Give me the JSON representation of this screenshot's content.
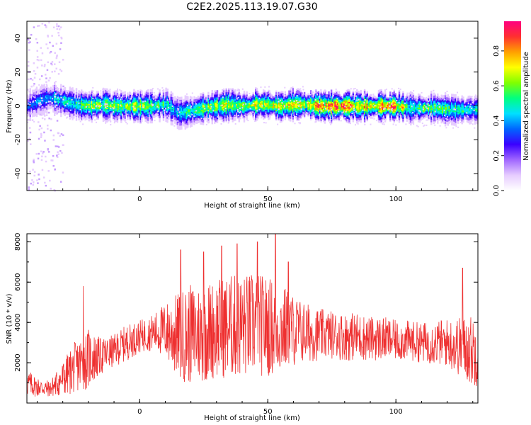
{
  "figure": {
    "title": "C2E2.2025.113.19.07.G30"
  },
  "colors": {
    "snr_line": "#ee3030",
    "spectrogram_background": "#ffffff"
  },
  "colormap": [
    "#ffffff",
    "#e6ccff",
    "#a066ff",
    "#3a00ff",
    "#0066ff",
    "#00e0ff",
    "#00ff80",
    "#80ff00",
    "#ffff00",
    "#ffa000",
    "#ff3030",
    "#ff0080"
  ],
  "chart_data": [
    {
      "type": "heatmap",
      "title": "C2E2.2025.113.19.07.G30",
      "xlabel": "Height of straight line (km)",
      "ylabel": "Frequency (Hz)",
      "xlim": [
        -44,
        132
      ],
      "ylim": [
        -50,
        50
      ],
      "x_ticks": [
        0,
        50,
        100
      ],
      "x_tick_labels": [
        "0",
        "50",
        "100"
      ],
      "y_ticks": [
        -40,
        -20,
        0,
        20,
        40
      ],
      "y_tick_labels": [
        "-40",
        "-20",
        "0",
        "20",
        "40"
      ],
      "colorbar": {
        "label": "Normalized spectral amplitude",
        "range": [
          0,
          0.97
        ],
        "ticks": [
          0,
          0.2,
          0.4,
          0.6,
          0.8
        ],
        "tick_labels": [
          "0.0",
          "0.2",
          "0.4",
          "0.6",
          "0.8"
        ]
      },
      "ridge": {
        "x": [
          -44,
          -40,
          -35,
          -30,
          -25,
          -20,
          -15,
          -10,
          -5,
          0,
          5,
          10,
          15,
          20,
          25,
          30,
          35,
          40,
          45,
          50,
          55,
          60,
          65,
          70,
          75,
          80,
          85,
          90,
          95,
          100,
          105,
          110,
          115,
          120,
          125,
          130
        ],
        "frequency": [
          0,
          3,
          5,
          3,
          1,
          0,
          1,
          0,
          0,
          0,
          0,
          1,
          -4,
          -3,
          -1,
          0,
          1,
          0,
          1,
          1,
          0,
          1,
          1,
          0,
          0,
          0,
          0,
          0,
          0,
          0,
          -1,
          -1,
          -1,
          -2,
          -2,
          -2
        ],
        "amplitude": [
          0.35,
          0.45,
          0.5,
          0.55,
          0.6,
          0.72,
          0.75,
          0.72,
          0.7,
          0.75,
          0.72,
          0.55,
          0.45,
          0.6,
          0.7,
          0.72,
          0.75,
          0.7,
          0.75,
          0.8,
          0.85,
          0.82,
          0.75,
          0.95,
          0.95,
          0.95,
          0.8,
          0.9,
          0.9,
          0.92,
          0.6,
          0.7,
          0.7,
          0.65,
          0.6,
          0.55
        ]
      }
    },
    {
      "type": "line",
      "xlabel": "Height of straight line (km)",
      "ylabel": "SNR (10 * v/v)",
      "xlim": [
        -44,
        132
      ],
      "ylim": [
        0,
        8400
      ],
      "x_ticks": [
        0,
        50,
        100
      ],
      "x_tick_labels": [
        "0",
        "50",
        "100"
      ],
      "y_ticks": [
        2000,
        4000,
        6000,
        8000
      ],
      "y_tick_labels": [
        "2000",
        "4000",
        "6000",
        "8000"
      ],
      "envelope": {
        "x": [
          -44,
          -40,
          -35,
          -30,
          -25,
          -20,
          -15,
          -10,
          -5,
          0,
          5,
          10,
          15,
          20,
          25,
          30,
          35,
          40,
          45,
          50,
          55,
          60,
          65,
          70,
          75,
          80,
          85,
          90,
          95,
          100,
          105,
          110,
          115,
          120,
          125,
          130
        ],
        "mean": [
          1000,
          800,
          700,
          1200,
          1800,
          2200,
          2300,
          2600,
          3000,
          3300,
          3500,
          3600,
          3300,
          3400,
          3500,
          3700,
          3800,
          3800,
          3900,
          3800,
          3700,
          3600,
          3500,
          3400,
          3400,
          3300,
          3300,
          3200,
          3200,
          3100,
          3100,
          3000,
          3000,
          3000,
          2800,
          2600
        ],
        "spread": [
          700,
          500,
          400,
          900,
          1300,
          1500,
          900,
          800,
          900,
          800,
          900,
          1400,
          2200,
          2500,
          2500,
          2500,
          2600,
          2600,
          2600,
          2500,
          2300,
          1800,
          1500,
          1300,
          1200,
          1200,
          1200,
          1100,
          1100,
          1000,
          1000,
          1000,
          1100,
          1200,
          1500,
          1800
        ],
        "peaks": [
          {
            "x": -22,
            "y": 5800
          },
          {
            "x": 16,
            "y": 7600
          },
          {
            "x": 25,
            "y": 7500
          },
          {
            "x": 32,
            "y": 7800
          },
          {
            "x": 38,
            "y": 7900
          },
          {
            "x": 46,
            "y": 8000
          },
          {
            "x": 53,
            "y": 8400
          },
          {
            "x": 58,
            "y": 7000
          },
          {
            "x": 126,
            "y": 6700
          }
        ]
      }
    }
  ]
}
